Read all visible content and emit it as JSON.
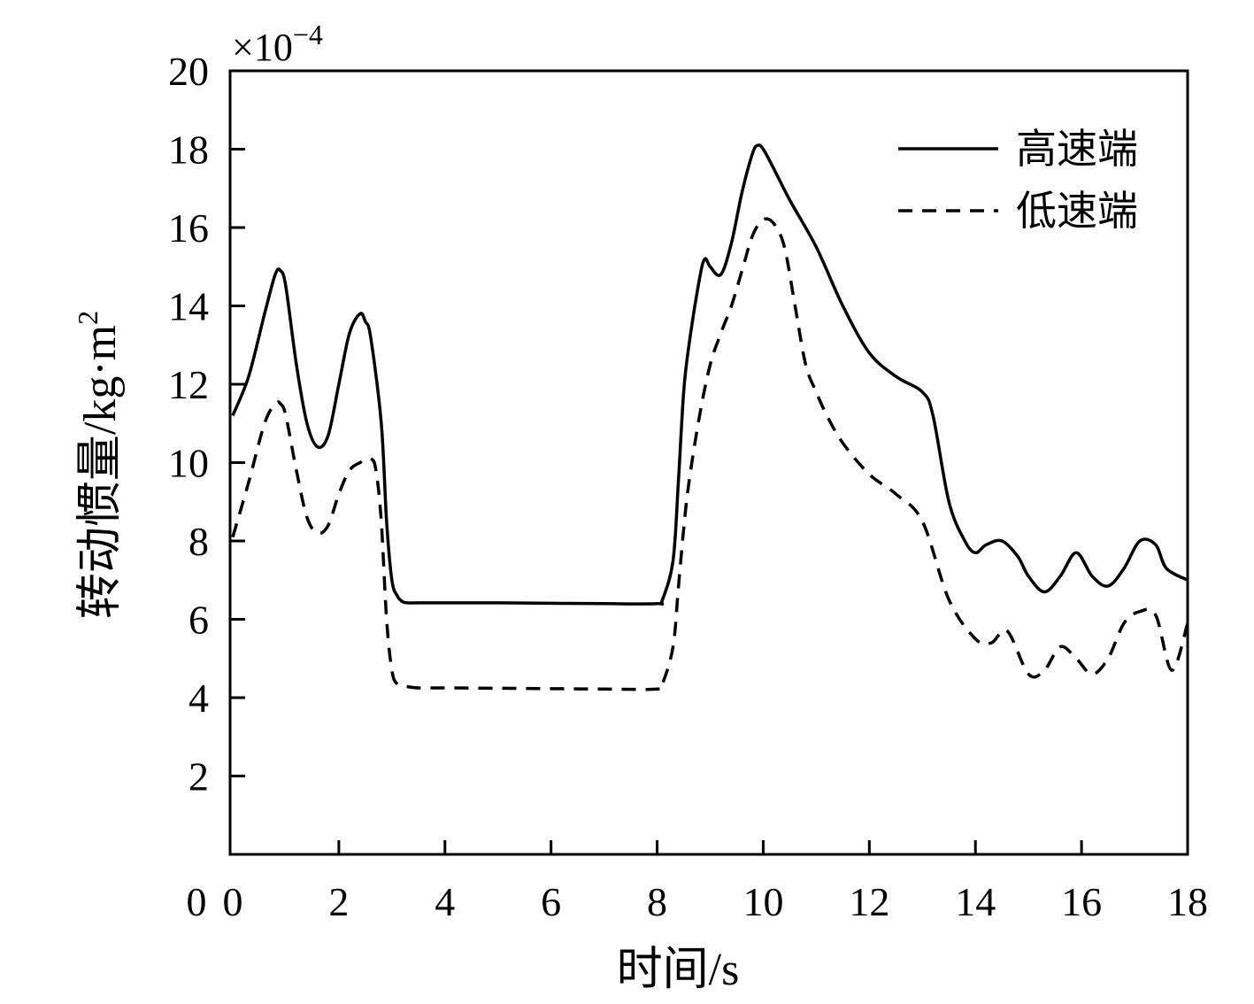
{
  "chart_data": {
    "type": "line",
    "xlabel": "时间/s",
    "ylabel": "转动惯量/kg·m²",
    "ylabel_main": "转动惯量/kg·m",
    "ylabel_sup": "2",
    "y_multiplier": "×10",
    "y_multiplier_exp": "−4",
    "xlim": [
      0,
      18
    ],
    "ylim": [
      0,
      20
    ],
    "x_ticks": [
      0,
      2,
      4,
      6,
      8,
      10,
      12,
      14,
      16,
      18
    ],
    "y_ticks": [
      2,
      4,
      6,
      8,
      10,
      12,
      14,
      16,
      18,
      20
    ],
    "y_origin_label": "0",
    "legend_position": "top-right",
    "grid": false,
    "series": [
      {
        "name": "高速端",
        "style": "solid",
        "color": "#000000",
        "x": [
          0,
          0.3,
          0.6,
          0.8,
          0.9,
          1.0,
          1.2,
          1.4,
          1.6,
          1.8,
          2.0,
          2.2,
          2.4,
          2.5,
          2.6,
          2.8,
          2.9,
          3.0,
          3.1,
          3.2,
          3.3,
          3.5,
          4,
          5,
          6,
          7,
          8,
          8.1,
          8.3,
          8.4,
          8.5,
          8.6,
          8.8,
          8.9,
          9.0,
          9.2,
          9.4,
          9.6,
          9.8,
          9.9,
          10.0,
          10.2,
          10.5,
          11.0,
          11.5,
          12.0,
          12.5,
          13.0,
          13.2,
          13.5,
          13.8,
          14.0,
          14.2,
          14.5,
          14.8,
          15.0,
          15.3,
          15.6,
          15.9,
          16.2,
          16.5,
          16.8,
          17.1,
          17.4,
          17.6,
          18.0
        ],
        "y": [
          11.2,
          12.2,
          13.8,
          14.8,
          14.9,
          14.5,
          12.5,
          11.0,
          10.4,
          10.7,
          12.0,
          13.3,
          13.8,
          13.6,
          13.2,
          11.0,
          8.5,
          7.0,
          6.6,
          6.45,
          6.42,
          6.42,
          6.42,
          6.42,
          6.41,
          6.4,
          6.4,
          6.5,
          7.5,
          9.5,
          11.8,
          13.0,
          14.7,
          15.2,
          15.0,
          14.8,
          15.6,
          16.9,
          17.9,
          18.1,
          18.0,
          17.5,
          16.7,
          15.5,
          14.0,
          12.8,
          12.2,
          11.8,
          11.2,
          9.0,
          8.0,
          7.7,
          7.9,
          8.0,
          7.6,
          7.1,
          6.7,
          7.1,
          7.7,
          7.1,
          6.85,
          7.3,
          8.0,
          7.9,
          7.3,
          7.0
        ]
      },
      {
        "name": "低速端",
        "style": "dashed",
        "color": "#000000",
        "x": [
          0,
          0.3,
          0.6,
          0.8,
          0.9,
          1.0,
          1.2,
          1.4,
          1.6,
          1.8,
          2.0,
          2.2,
          2.4,
          2.6,
          2.7,
          2.8,
          2.9,
          3.0,
          3.1,
          3.3,
          3.5,
          4,
          5,
          6,
          7,
          8,
          8.1,
          8.3,
          8.4,
          8.5,
          8.6,
          8.8,
          9.0,
          9.2,
          9.4,
          9.6,
          9.8,
          10.0,
          10.2,
          10.4,
          10.6,
          10.8,
          11.0,
          11.2,
          11.5,
          12.0,
          12.5,
          13.0,
          13.5,
          14.0,
          14.3,
          14.6,
          15.0,
          15.3,
          15.6,
          15.9,
          16.2,
          16.5,
          16.8,
          17.1,
          17.4,
          17.7,
          18.0
        ],
        "y": [
          8.1,
          9.5,
          11.0,
          11.5,
          11.5,
          11.2,
          9.8,
          8.6,
          8.2,
          8.4,
          9.2,
          9.8,
          10.0,
          10.1,
          9.8,
          8.5,
          6.0,
          4.7,
          4.35,
          4.28,
          4.25,
          4.25,
          4.24,
          4.23,
          4.22,
          4.22,
          4.35,
          5.3,
          6.8,
          8.3,
          9.5,
          11.2,
          12.5,
          13.3,
          14.0,
          14.9,
          15.8,
          16.2,
          16.1,
          15.5,
          14.0,
          12.5,
          11.8,
          11.2,
          10.5,
          9.7,
          9.2,
          8.5,
          6.5,
          5.5,
          5.4,
          5.7,
          4.6,
          4.7,
          5.3,
          5.0,
          4.6,
          5.0,
          5.9,
          6.2,
          6.1,
          4.7,
          5.9
        ]
      }
    ]
  }
}
